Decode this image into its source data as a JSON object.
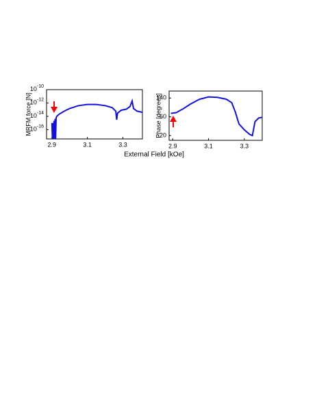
{
  "chart_data": [
    {
      "type": "line",
      "ylabel": "MRFM force [N]",
      "xlabel": "External Field [kOe]",
      "log_y": true,
      "color": "#1010e0",
      "xlim": [
        2.87,
        3.41
      ],
      "xticks": [
        2.9,
        3.1,
        3.3
      ],
      "ylim": [
        4e-18,
        1e-10
      ],
      "yticks": [
        {
          "value": 1e-10,
          "label": "10^-10"
        },
        {
          "value": 1e-12,
          "label": "10^-12"
        },
        {
          "value": 1e-14,
          "label": "10^-14"
        },
        {
          "value": 1e-16,
          "label": "10^-16"
        }
      ],
      "x": [
        2.9,
        2.903,
        2.906,
        2.909,
        2.912,
        2.915,
        2.918,
        2.921,
        2.924,
        2.928,
        2.94,
        2.97,
        3.0,
        3.05,
        3.1,
        3.15,
        3.2,
        3.24,
        3.26,
        3.265,
        3.27,
        3.29,
        3.32,
        3.34,
        3.352,
        3.36,
        3.38,
        3.41
      ],
      "values": [
        1e-15,
        4e-18,
        1e-15,
        4e-18,
        2e-15,
        4e-18,
        4e-15,
        4e-18,
        6e-15,
        1e-14,
        2e-14,
        6e-14,
        1.5e-13,
        4e-13,
        6e-13,
        6e-13,
        4e-13,
        2e-13,
        6e-14,
        3e-15,
        3e-14,
        8e-14,
        1.2e-13,
        3e-13,
        2e-12,
        1.5e-13,
        6e-14,
        4e-14
      ]
    },
    {
      "type": "line",
      "ylabel": "Phase [degrees]",
      "log_y": false,
      "color": "#1010e0",
      "xlim": [
        2.88,
        3.4
      ],
      "xticks": [
        2.9,
        3.1,
        3.3
      ],
      "ylim": [
        -40,
        170
      ],
      "yticks": [
        140,
        60,
        -20
      ],
      "x": [
        2.89,
        2.92,
        2.96,
        3.0,
        3.05,
        3.1,
        3.15,
        3.2,
        3.23,
        3.25,
        3.27,
        3.3,
        3.33,
        3.345,
        3.36,
        3.38,
        3.4
      ],
      "values": [
        75,
        78,
        95,
        115,
        135,
        145,
        143,
        135,
        120,
        80,
        30,
        5,
        -15,
        -20,
        40,
        55,
        58
      ]
    }
  ]
}
